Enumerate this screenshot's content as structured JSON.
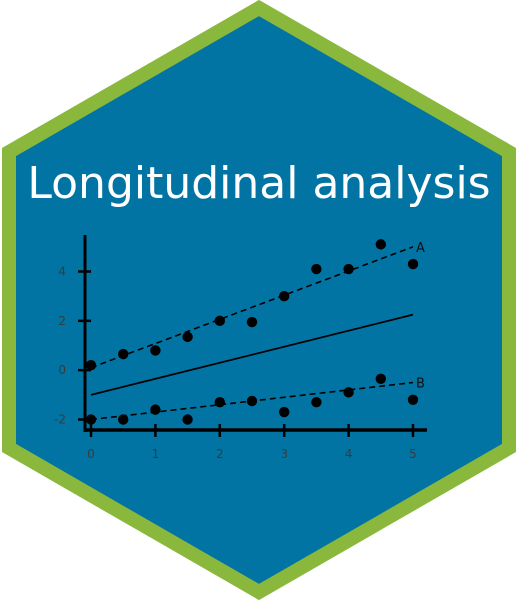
{
  "sticker": {
    "title": "Longitudinal analysis",
    "colors": {
      "border": "#8ab83d",
      "fill": "#0274a4",
      "title": "#ffffff",
      "ink": "#000000"
    }
  },
  "chart_data": {
    "type": "scatter",
    "title": "",
    "xlabel": "",
    "ylabel": "",
    "xlim": [
      0,
      5
    ],
    "ylim": [
      -2.4,
      5.4
    ],
    "xticks": [
      "0",
      "1",
      "2",
      "3",
      "4",
      "5"
    ],
    "yticks": [
      "-2",
      "0",
      "2",
      "4"
    ],
    "grid": false,
    "series": [
      {
        "name": "A",
        "x": [
          0,
          0.5,
          1,
          1.5,
          2,
          2.5,
          3,
          3.5,
          4,
          4.5,
          5
        ],
        "y": [
          0.2,
          0.65,
          0.8,
          1.35,
          2.0,
          1.95,
          3.0,
          4.1,
          4.1,
          5.1,
          4.3
        ],
        "trend": [
          [
            0,
            0.1
          ],
          [
            5,
            5.0
          ]
        ]
      },
      {
        "name": "B",
        "x": [
          0,
          0.5,
          1,
          1.5,
          2,
          2.5,
          3,
          3.5,
          4,
          4.5,
          5
        ],
        "y": [
          -2.0,
          -2.0,
          -1.6,
          -2.0,
          -1.3,
          -1.25,
          -1.7,
          -1.3,
          -0.9,
          -0.35,
          -1.2
        ],
        "trend": [
          [
            0,
            -2.0
          ],
          [
            5,
            -0.5
          ]
        ]
      }
    ],
    "overall_trend": [
      [
        0,
        -1.0
      ],
      [
        5,
        2.25
      ]
    ]
  }
}
